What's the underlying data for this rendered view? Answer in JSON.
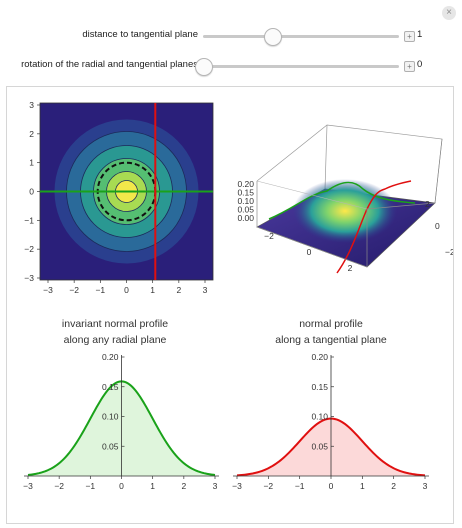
{
  "controls": {
    "distance": {
      "label": "distance to tangential plane",
      "value": "1",
      "fraction": 0.35
    },
    "rotation": {
      "label": "rotation of the radial and tangential planes",
      "value": "0",
      "fraction": 0.0
    },
    "plus_symbol": "+",
    "close_symbol": "×"
  },
  "colors": {
    "green": "#1aa21a",
    "red": "#e01010",
    "contour_bg": "#2a1f7a",
    "green_fill": "#dff5dc",
    "red_fill": "#fcd9d9"
  },
  "chart_data": [
    {
      "type": "contour",
      "x_ticks": [
        "−3",
        "−2",
        "−1",
        "0",
        "1",
        "2",
        "3"
      ],
      "y_ticks": [
        "3",
        "2",
        "1",
        "0",
        "−1",
        "−2",
        "−3"
      ],
      "xlim": [
        -3,
        3
      ],
      "ylim": [
        -3,
        3
      ],
      "lines": [
        {
          "name": "radial plane",
          "orientation": "horizontal",
          "value": 0
        },
        {
          "name": "tangential plane",
          "orientation": "vertical",
          "value": 1
        }
      ],
      "dashed_circle_radius": 1
    },
    {
      "type": "surface",
      "z_ticks": [
        "0.20",
        "0.15",
        "0.10",
        "0.05",
        "0.00"
      ],
      "x_ticks": [
        "−2",
        "0",
        "2"
      ],
      "y_ticks": [
        "2",
        "0",
        "−2"
      ],
      "zlim": [
        0,
        0.2
      ]
    },
    {
      "type": "line",
      "title_line1": "invariant normal profile",
      "title_line2": "along any radial plane",
      "x_ticks": [
        "−3",
        "−2",
        "−1",
        "0",
        "1",
        "2",
        "3"
      ],
      "y_ticks": [
        "0.05",
        "0.10",
        "0.15",
        "0.20"
      ],
      "xlim": [
        -3,
        3
      ],
      "ylim": [
        0,
        0.2
      ],
      "peak": 0.159
    },
    {
      "type": "line",
      "title_line1": "normal profile",
      "title_line2": "along a tangential plane",
      "x_ticks": [
        "−3",
        "−2",
        "−1",
        "0",
        "1",
        "2",
        "3"
      ],
      "y_ticks": [
        "0.05",
        "0.10",
        "0.15",
        "0.20"
      ],
      "xlim": [
        -3,
        3
      ],
      "ylim": [
        0,
        0.2
      ],
      "peak": 0.0965
    }
  ]
}
